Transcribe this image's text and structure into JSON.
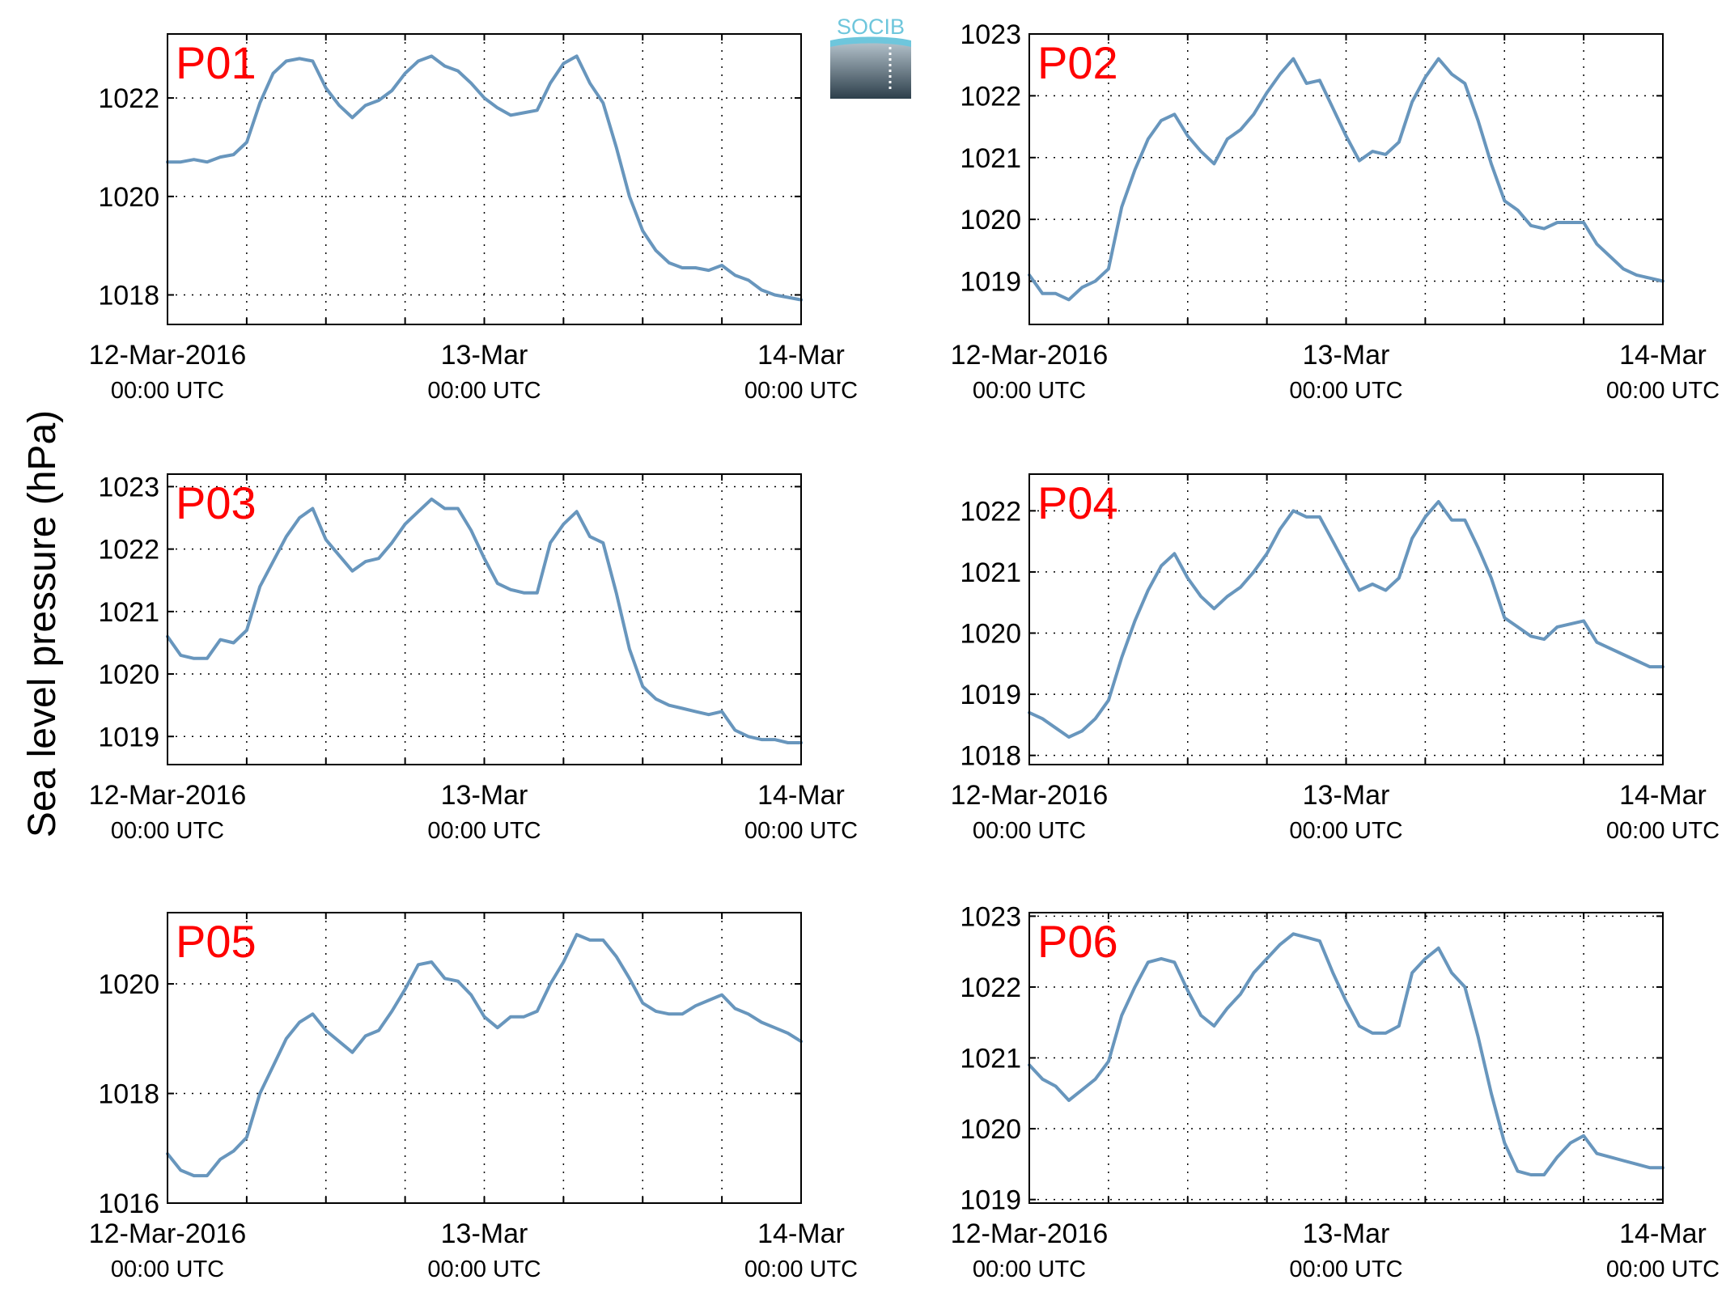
{
  "figure": {
    "ylabel": "Sea level pressure (hPa)",
    "logo_text": "SOCIB",
    "line_color": "#6896bd",
    "label_color": "#ff0000"
  },
  "chart_data": [
    {
      "type": "line",
      "title": "P01",
      "xlim": [
        0,
        48
      ],
      "ylim": [
        1017.4,
        1023.3
      ],
      "yticks": [
        1018,
        1020,
        1022
      ],
      "xticks": [
        0,
        6,
        12,
        18,
        24,
        30,
        36,
        42,
        48
      ],
      "xtick_labels": [
        {
          "at": 0,
          "date": "12-Mar-2016",
          "time": "00:00 UTC"
        },
        {
          "at": 24,
          "date": "13-Mar",
          "time": "00:00 UTC"
        },
        {
          "at": 48,
          "date": "14-Mar",
          "time": "00:00 UTC"
        }
      ],
      "x": [
        0,
        1,
        2,
        3,
        4,
        5,
        6,
        7,
        8,
        9,
        10,
        11,
        12,
        13,
        14,
        15,
        16,
        17,
        18,
        19,
        20,
        21,
        22,
        23,
        24,
        25,
        26,
        27,
        28,
        29,
        30,
        31,
        32,
        33,
        34,
        35,
        36,
        37,
        38,
        39,
        40,
        41,
        42,
        43,
        44,
        45,
        46,
        47,
        48
      ],
      "values": [
        1020.7,
        1020.7,
        1020.75,
        1020.7,
        1020.8,
        1020.85,
        1021.1,
        1021.9,
        1022.5,
        1022.75,
        1022.8,
        1022.75,
        1022.2,
        1021.85,
        1021.6,
        1021.85,
        1021.95,
        1022.15,
        1022.5,
        1022.75,
        1022.85,
        1022.65,
        1022.55,
        1022.3,
        1022.0,
        1021.8,
        1021.65,
        1021.7,
        1021.75,
        1022.3,
        1022.7,
        1022.85,
        1022.3,
        1021.9,
        1021.0,
        1020.0,
        1019.3,
        1018.9,
        1018.65,
        1018.55,
        1018.55,
        1018.5,
        1018.6,
        1018.4,
        1018.3,
        1018.1,
        1018.0,
        1017.95,
        1017.9
      ]
    },
    {
      "type": "line",
      "title": "P02",
      "xlim": [
        0,
        48
      ],
      "ylim": [
        1018.3,
        1023
      ],
      "yticks": [
        1019,
        1020,
        1021,
        1022,
        1023
      ],
      "xticks": [
        0,
        6,
        12,
        18,
        24,
        30,
        36,
        42,
        48
      ],
      "xtick_labels": [
        {
          "at": 0,
          "date": "12-Mar-2016",
          "time": "00:00 UTC"
        },
        {
          "at": 24,
          "date": "13-Mar",
          "time": "00:00 UTC"
        },
        {
          "at": 48,
          "date": "14-Mar",
          "time": "00:00 UTC"
        }
      ],
      "x": [
        0,
        1,
        2,
        3,
        4,
        5,
        6,
        7,
        8,
        9,
        10,
        11,
        12,
        13,
        14,
        15,
        16,
        17,
        18,
        19,
        20,
        21,
        22,
        23,
        24,
        25,
        26,
        27,
        28,
        29,
        30,
        31,
        32,
        33,
        34,
        35,
        36,
        37,
        38,
        39,
        40,
        41,
        42,
        43,
        44,
        45,
        46,
        47,
        48
      ],
      "values": [
        1019.1,
        1018.8,
        1018.8,
        1018.7,
        1018.9,
        1019.0,
        1019.2,
        1020.2,
        1020.8,
        1021.3,
        1021.6,
        1021.7,
        1021.35,
        1021.1,
        1020.9,
        1021.3,
        1021.45,
        1021.7,
        1022.05,
        1022.35,
        1022.6,
        1022.2,
        1022.25,
        1021.8,
        1021.35,
        1020.95,
        1021.1,
        1021.05,
        1021.25,
        1021.9,
        1022.3,
        1022.6,
        1022.35,
        1022.2,
        1021.6,
        1020.9,
        1020.3,
        1020.15,
        1019.9,
        1019.85,
        1019.95,
        1019.95,
        1019.95,
        1019.6,
        1019.4,
        1019.2,
        1019.1,
        1019.05,
        1019.0
      ]
    },
    {
      "type": "line",
      "title": "P03",
      "xlim": [
        0,
        48
      ],
      "ylim": [
        1018.55,
        1023.2
      ],
      "yticks": [
        1019,
        1020,
        1021,
        1022,
        1023
      ],
      "xticks": [
        0,
        6,
        12,
        18,
        24,
        30,
        36,
        42,
        48
      ],
      "xtick_labels": [
        {
          "at": 0,
          "date": "12-Mar-2016",
          "time": "00:00 UTC"
        },
        {
          "at": 24,
          "date": "13-Mar",
          "time": "00:00 UTC"
        },
        {
          "at": 48,
          "date": "14-Mar",
          "time": "00:00 UTC"
        }
      ],
      "x": [
        0,
        1,
        2,
        3,
        4,
        5,
        6,
        7,
        8,
        9,
        10,
        11,
        12,
        13,
        14,
        15,
        16,
        17,
        18,
        19,
        20,
        21,
        22,
        23,
        24,
        25,
        26,
        27,
        28,
        29,
        30,
        31,
        32,
        33,
        34,
        35,
        36,
        37,
        38,
        39,
        40,
        41,
        42,
        43,
        44,
        45,
        46,
        47,
        48
      ],
      "values": [
        1020.6,
        1020.3,
        1020.25,
        1020.25,
        1020.55,
        1020.5,
        1020.7,
        1021.4,
        1021.8,
        1022.2,
        1022.5,
        1022.65,
        1022.15,
        1021.9,
        1021.65,
        1021.8,
        1021.85,
        1022.1,
        1022.4,
        1022.6,
        1022.8,
        1022.65,
        1022.65,
        1022.3,
        1021.85,
        1021.45,
        1021.35,
        1021.3,
        1021.3,
        1022.1,
        1022.4,
        1022.6,
        1022.2,
        1022.1,
        1021.3,
        1020.4,
        1019.8,
        1019.6,
        1019.5,
        1019.45,
        1019.4,
        1019.35,
        1019.4,
        1019.1,
        1019.0,
        1018.95,
        1018.95,
        1018.9,
        1018.9
      ]
    },
    {
      "type": "line",
      "title": "P04",
      "xlim": [
        0,
        48
      ],
      "ylim": [
        1017.85,
        1022.6
      ],
      "yticks": [
        1018,
        1019,
        1020,
        1021,
        1022
      ],
      "xticks": [
        0,
        6,
        12,
        18,
        24,
        30,
        36,
        42,
        48
      ],
      "xtick_labels": [
        {
          "at": 0,
          "date": "12-Mar-2016",
          "time": "00:00 UTC"
        },
        {
          "at": 24,
          "date": "13-Mar",
          "time": "00:00 UTC"
        },
        {
          "at": 48,
          "date": "14-Mar",
          "time": "00:00 UTC"
        }
      ],
      "x": [
        0,
        1,
        2,
        3,
        4,
        5,
        6,
        7,
        8,
        9,
        10,
        11,
        12,
        13,
        14,
        15,
        16,
        17,
        18,
        19,
        20,
        21,
        22,
        23,
        24,
        25,
        26,
        27,
        28,
        29,
        30,
        31,
        32,
        33,
        34,
        35,
        36,
        37,
        38,
        39,
        40,
        41,
        42,
        43,
        44,
        45,
        46,
        47,
        48
      ],
      "values": [
        1018.7,
        1018.6,
        1018.45,
        1018.3,
        1018.4,
        1018.6,
        1018.9,
        1019.6,
        1020.2,
        1020.7,
        1021.1,
        1021.3,
        1020.9,
        1020.6,
        1020.4,
        1020.6,
        1020.75,
        1021.0,
        1021.3,
        1021.7,
        1022.0,
        1021.9,
        1021.9,
        1021.5,
        1021.1,
        1020.7,
        1020.8,
        1020.7,
        1020.9,
        1021.55,
        1021.9,
        1022.15,
        1021.85,
        1021.85,
        1021.4,
        1020.9,
        1020.25,
        1020.1,
        1019.95,
        1019.9,
        1020.1,
        1020.15,
        1020.2,
        1019.85,
        1019.75,
        1019.65,
        1019.55,
        1019.45,
        1019.45
      ]
    },
    {
      "type": "line",
      "title": "P05",
      "xlim": [
        0,
        48
      ],
      "ylim": [
        1016,
        1021.3
      ],
      "yticks": [
        1016,
        1018,
        1020
      ],
      "xticks": [
        0,
        6,
        12,
        18,
        24,
        30,
        36,
        42,
        48
      ],
      "xtick_labels": [
        {
          "at": 0,
          "date": "12-Mar-2016",
          "time": "00:00 UTC"
        },
        {
          "at": 24,
          "date": "13-Mar",
          "time": "00:00 UTC"
        },
        {
          "at": 48,
          "date": "14-Mar",
          "time": "00:00 UTC"
        }
      ],
      "x": [
        0,
        1,
        2,
        3,
        4,
        5,
        6,
        7,
        8,
        9,
        10,
        11,
        12,
        13,
        14,
        15,
        16,
        17,
        18,
        19,
        20,
        21,
        22,
        23,
        24,
        25,
        26,
        27,
        28,
        29,
        30,
        31,
        32,
        33,
        34,
        35,
        36,
        37,
        38,
        39,
        40,
        41,
        42,
        43,
        44,
        45,
        46,
        47,
        48
      ],
      "values": [
        1016.9,
        1016.6,
        1016.5,
        1016.5,
        1016.8,
        1016.95,
        1017.2,
        1018.0,
        1018.5,
        1019.0,
        1019.3,
        1019.45,
        1019.15,
        1018.95,
        1018.75,
        1019.05,
        1019.15,
        1019.5,
        1019.9,
        1020.35,
        1020.4,
        1020.1,
        1020.05,
        1019.8,
        1019.4,
        1019.2,
        1019.4,
        1019.4,
        1019.5,
        1020.0,
        1020.4,
        1020.9,
        1020.8,
        1020.8,
        1020.5,
        1020.1,
        1019.65,
        1019.5,
        1019.45,
        1019.45,
        1019.6,
        1019.7,
        1019.8,
        1019.55,
        1019.45,
        1019.3,
        1019.2,
        1019.1,
        1018.95
      ]
    },
    {
      "type": "line",
      "title": "P06",
      "xlim": [
        0,
        48
      ],
      "ylim": [
        1018.95,
        1023.05
      ],
      "yticks": [
        1019,
        1020,
        1021,
        1022,
        1023
      ],
      "xticks": [
        0,
        6,
        12,
        18,
        24,
        30,
        36,
        42,
        48
      ],
      "xtick_labels": [
        {
          "at": 0,
          "date": "12-Mar-2016",
          "time": "00:00 UTC"
        },
        {
          "at": 24,
          "date": "13-Mar",
          "time": "00:00 UTC"
        },
        {
          "at": 48,
          "date": "14-Mar",
          "time": "00:00 UTC"
        }
      ],
      "x": [
        0,
        1,
        2,
        3,
        4,
        5,
        6,
        7,
        8,
        9,
        10,
        11,
        12,
        13,
        14,
        15,
        16,
        17,
        18,
        19,
        20,
        21,
        22,
        23,
        24,
        25,
        26,
        27,
        28,
        29,
        30,
        31,
        32,
        33,
        34,
        35,
        36,
        37,
        38,
        39,
        40,
        41,
        42,
        43,
        44,
        45,
        46,
        47,
        48
      ],
      "values": [
        1020.9,
        1020.7,
        1020.6,
        1020.4,
        1020.55,
        1020.7,
        1020.95,
        1021.6,
        1022.0,
        1022.35,
        1022.4,
        1022.35,
        1021.95,
        1021.6,
        1021.45,
        1021.7,
        1021.9,
        1022.2,
        1022.4,
        1022.6,
        1022.75,
        1022.7,
        1022.65,
        1022.2,
        1021.8,
        1021.45,
        1021.35,
        1021.35,
        1021.45,
        1022.2,
        1022.4,
        1022.55,
        1022.2,
        1022.0,
        1021.3,
        1020.5,
        1019.8,
        1019.4,
        1019.35,
        1019.35,
        1019.6,
        1019.8,
        1019.9,
        1019.65,
        1019.6,
        1019.55,
        1019.5,
        1019.45,
        1019.45
      ]
    }
  ]
}
